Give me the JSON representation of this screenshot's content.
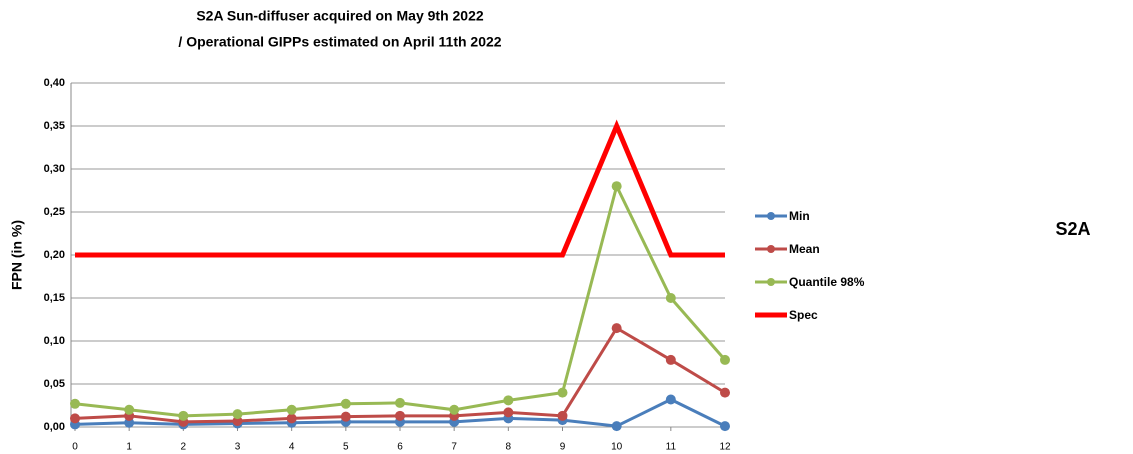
{
  "chart_data": {
    "type": "line",
    "title": [
      "S2A Sun-diffuser acquired on May 9th 2022",
      "/ Operational GIPPs estimated on April 11th 2022"
    ],
    "ylabel": "FPN (in %)",
    "side_label": "S2A",
    "x": [
      0,
      1,
      2,
      3,
      4,
      5,
      6,
      7,
      8,
      9,
      10,
      11,
      12
    ],
    "xlim": [
      0,
      12
    ],
    "xticks": [
      0,
      1,
      2,
      3,
      4,
      5,
      6,
      7,
      8,
      9,
      10,
      11,
      12
    ],
    "ylim": [
      0,
      0.4
    ],
    "yticks": [
      {
        "value": 0,
        "label": "0,00"
      },
      {
        "value": 0.05,
        "label": "0,05"
      },
      {
        "value": 0.1,
        "label": "0,10"
      },
      {
        "value": 0.15,
        "label": "0,15"
      },
      {
        "value": 0.2,
        "label": "0,20"
      },
      {
        "value": 0.25,
        "label": "0,25"
      },
      {
        "value": 0.3,
        "label": "0,30"
      },
      {
        "value": 0.35,
        "label": "0,35"
      },
      {
        "value": 0.4,
        "label": "0,40"
      }
    ],
    "grid": true,
    "legend": "right",
    "series": [
      {
        "name": "Min",
        "color": "#4a7ebb",
        "marker": true,
        "line_width": 3,
        "values": [
          0.003,
          0.005,
          0.003,
          0.004,
          0.005,
          0.006,
          0.006,
          0.006,
          0.01,
          0.008,
          0.001,
          0.032,
          0.001
        ]
      },
      {
        "name": "Mean",
        "color": "#be4b48",
        "marker": true,
        "line_width": 3,
        "values": [
          0.01,
          0.013,
          0.006,
          0.007,
          0.01,
          0.012,
          0.013,
          0.013,
          0.017,
          0.013,
          0.115,
          0.078,
          0.04
        ]
      },
      {
        "name": "Quantile 98%",
        "color": "#98b954",
        "marker": true,
        "line_width": 3,
        "values": [
          0.027,
          0.02,
          0.013,
          0.015,
          0.02,
          0.027,
          0.028,
          0.02,
          0.031,
          0.04,
          0.28,
          0.15,
          0.078
        ]
      },
      {
        "name": "Spec",
        "color": "#ff0000",
        "marker": false,
        "line_width": 5,
        "values": [
          0.2,
          0.2,
          0.2,
          0.2,
          0.2,
          0.2,
          0.2,
          0.2,
          0.2,
          0.2,
          0.35,
          0.2,
          0.2
        ]
      }
    ]
  }
}
